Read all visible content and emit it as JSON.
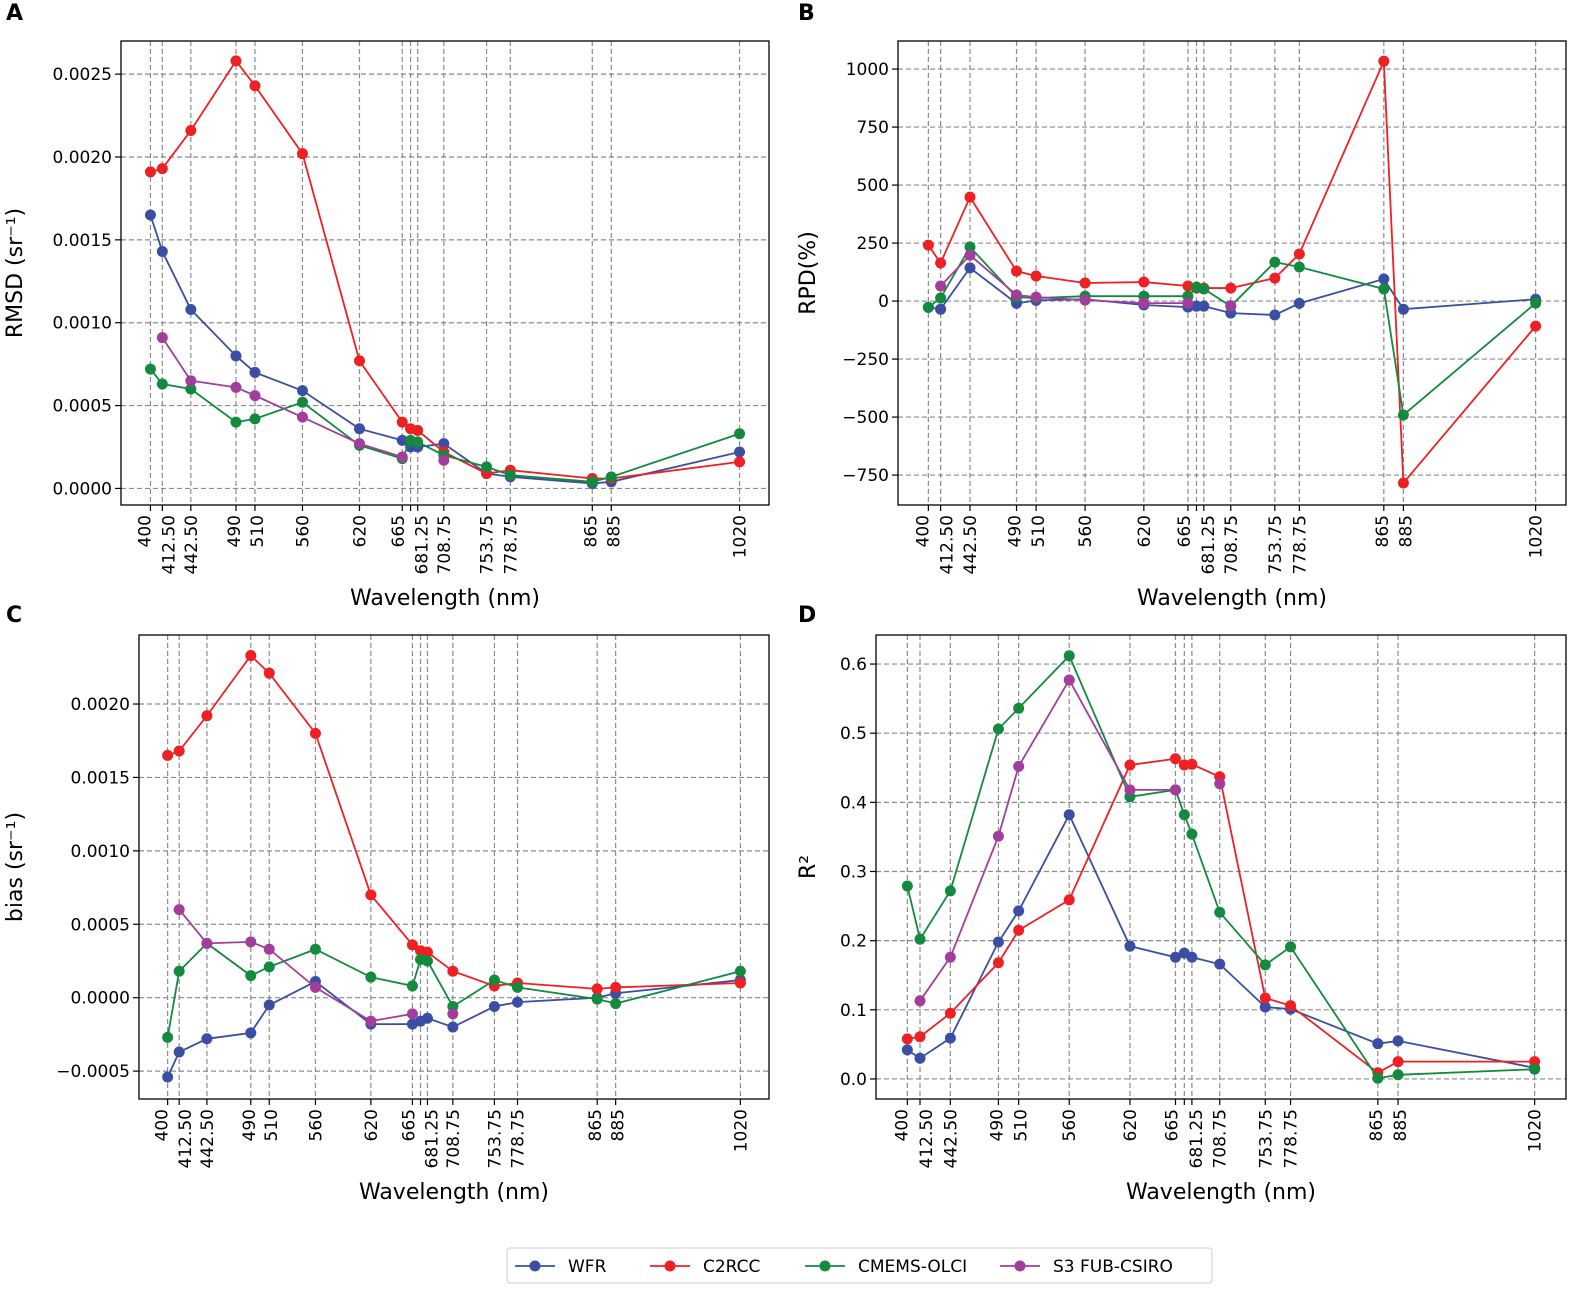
{
  "chart_data": {
    "type": "line",
    "x": [
      400,
      412.5,
      442.5,
      490,
      510,
      560,
      620,
      665,
      673.75,
      681.25,
      708.75,
      753.75,
      778.75,
      865,
      885,
      1020
    ],
    "x_tick_labels": [
      "400",
      "412.50",
      "442.50",
      "490",
      "510",
      "560",
      "620",
      "665",
      null,
      "681.25",
      "708.75",
      "753.75",
      "778.75",
      "865",
      "885",
      "1020"
    ],
    "xlim": [
      369,
      1051
    ],
    "legend": {
      "placement": "bottom-center",
      "entries": [
        "WFR",
        "C2RCC",
        "CMEMS-OLCI",
        "S3 FUB-CSIRO"
      ]
    },
    "colors": {
      "WFR": "#3a4fa3",
      "C2RCC": "#ee2024",
      "CMEMS-OLCI": "#138a3e",
      "S3 FUB-CSIRO": "#a23d9b"
    },
    "panels": [
      {
        "letter": "A",
        "xlabel": "Wavelength (nm)",
        "ylabel": "RMSD (sr⁻¹)",
        "ylim": [
          -0.0001,
          0.0027
        ],
        "yticks": [
          0,
          0.0005,
          0.001,
          0.0015,
          0.002,
          0.0025
        ],
        "ytick_labels": [
          "0.0000",
          "0.0005",
          "0.0010",
          "0.0015",
          "0.0020",
          "0.0025"
        ],
        "grid": true,
        "series": [
          {
            "name": "WFR",
            "values": [
              0.00165,
              0.00143,
              0.00108,
              0.0008,
              0.0007,
              0.00059,
              0.00036,
              0.00029,
              0.00025,
              0.00025,
              0.00027,
              9e-05,
              7e-05,
              3e-05,
              4e-05,
              0.00022
            ]
          },
          {
            "name": "C2RCC",
            "values": [
              0.00191,
              0.00193,
              0.00216,
              0.00258,
              0.00243,
              0.00202,
              0.00077,
              0.0004,
              0.00036,
              0.00035,
              0.00022,
              9e-05,
              0.00011,
              6e-05,
              6e-05,
              0.00016
            ]
          },
          {
            "name": "CMEMS-OLCI",
            "values": [
              0.00072,
              0.00063,
              0.0006,
              0.0004,
              0.00042,
              0.00052,
              0.00026,
              0.00018,
              0.00029,
              0.00028,
              0.0002,
              0.00013,
              8e-05,
              4e-05,
              7e-05,
              0.00033
            ]
          },
          {
            "name": "S3 FUB-CSIRO",
            "values": [
              null,
              0.00091,
              0.00065,
              0.00061,
              0.00056,
              0.00043,
              0.00027,
              0.00019,
              null,
              null,
              0.00017,
              null,
              null,
              null,
              null,
              null
            ]
          }
        ]
      },
      {
        "letter": "B",
        "xlabel": "Wavelength (nm)",
        "ylabel": "RPD(%)",
        "ylim": [
          -879,
          1121
        ],
        "yticks": [
          -750,
          -500,
          -250,
          0,
          250,
          500,
          750,
          1000
        ],
        "ytick_labels": [
          "−750",
          "−500",
          "−250",
          "0",
          "250",
          "500",
          "750",
          "1000"
        ],
        "grid": true,
        "series": [
          {
            "name": "WFR",
            "values": [
              -27,
              -35,
              143,
              -10,
              3,
              8,
              -17,
              -26,
              -22,
              -22,
              -52,
              -60,
              -10,
              95,
              -35,
              8
            ]
          },
          {
            "name": "C2RCC",
            "values": [
              241,
              164,
              448,
              129,
              108,
              78,
              82,
              65,
              56,
              56,
              56,
              99,
              203,
              1034,
              -784,
              -108
            ]
          },
          {
            "name": "CMEMS-OLCI",
            "values": [
              -27,
              13,
              233,
              17,
              13,
              21,
              21,
              21,
              60,
              52,
              -22,
              168,
              147,
              52,
              -491,
              -9
            ]
          },
          {
            "name": "S3 FUB-CSIRO",
            "values": [
              null,
              65,
              198,
              26,
              17,
              4,
              -9,
              -9,
              null,
              null,
              -20,
              null,
              null,
              null,
              null,
              null
            ]
          }
        ]
      },
      {
        "letter": "C",
        "xlabel": "Wavelength (nm)",
        "ylabel": "bias (sr⁻¹)",
        "ylim": [
          -0.00069,
          0.00247
        ],
        "yticks": [
          -0.0005,
          0,
          0.0005,
          0.001,
          0.0015,
          0.002
        ],
        "ytick_labels": [
          "−0.0005",
          "0.0000",
          "0.0005",
          "0.0010",
          "0.0015",
          "0.0020"
        ],
        "grid": true,
        "series": [
          {
            "name": "WFR",
            "values": [
              -0.00054,
              -0.00037,
              -0.00028,
              -0.00024,
              -5e-05,
              0.00011,
              -0.00018,
              -0.00018,
              -0.00016,
              -0.00014,
              -0.0002,
              -6e-05,
              -3e-05,
              0.0,
              3e-05,
              0.00012
            ]
          },
          {
            "name": "C2RCC",
            "values": [
              0.00165,
              0.00168,
              0.00192,
              0.00233,
              0.00221,
              0.0018,
              0.0007,
              0.00036,
              0.00032,
              0.00031,
              0.00018,
              8e-05,
              0.0001,
              6e-05,
              7e-05,
              0.0001
            ]
          },
          {
            "name": "CMEMS-OLCI",
            "values": [
              -0.00027,
              0.00018,
              0.00037,
              0.00015,
              0.00021,
              0.00033,
              0.00014,
              8e-05,
              0.00026,
              0.00025,
              -6e-05,
              0.00012,
              7e-05,
              -1e-05,
              -4e-05,
              0.00018
            ]
          },
          {
            "name": "S3 FUB-CSIRO",
            "values": [
              null,
              0.0006,
              0.00037,
              0.00038,
              0.00033,
              7e-05,
              -0.00016,
              -0.00011,
              null,
              null,
              -0.00011,
              null,
              null,
              null,
              null,
              null
            ]
          }
        ]
      },
      {
        "letter": "D",
        "xlabel": "Wavelength (nm)",
        "ylabel": "R²",
        "ylim": [
          -0.029,
          0.642
        ],
        "yticks": [
          0,
          0.1,
          0.2,
          0.3,
          0.4,
          0.5,
          0.6
        ],
        "ytick_labels": [
          "0.0",
          "0.1",
          "0.2",
          "0.3",
          "0.4",
          "0.5",
          "0.6"
        ],
        "grid": true,
        "series": [
          {
            "name": "WFR",
            "values": [
              0.042,
              0.03,
              0.059,
              0.198,
              0.243,
              0.382,
              0.192,
              0.176,
              0.182,
              0.176,
              0.166,
              0.104,
              0.101,
              0.051,
              0.055,
              0.016
            ]
          },
          {
            "name": "C2RCC",
            "values": [
              0.058,
              0.061,
              0.095,
              0.168,
              0.215,
              0.259,
              0.454,
              0.463,
              0.454,
              0.455,
              0.437,
              0.117,
              0.106,
              0.009,
              0.025,
              0.025
            ]
          },
          {
            "name": "CMEMS-OLCI",
            "values": [
              0.279,
              0.202,
              0.272,
              0.506,
              0.536,
              0.612,
              0.408,
              0.418,
              0.382,
              0.354,
              0.241,
              0.165,
              0.191,
              0.001,
              0.006,
              0.014
            ]
          },
          {
            "name": "S3 FUB-CSIRO",
            "values": [
              null,
              0.113,
              0.176,
              0.351,
              0.452,
              0.577,
              0.418,
              0.418,
              null,
              null,
              0.427,
              null,
              null,
              null,
              null,
              null
            ]
          }
        ]
      }
    ]
  }
}
